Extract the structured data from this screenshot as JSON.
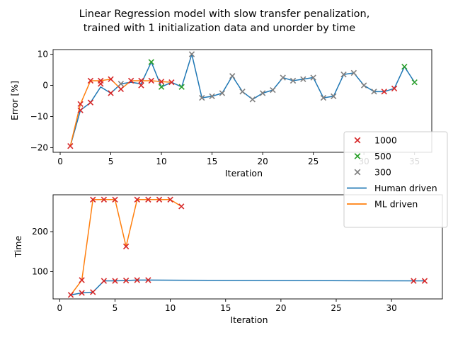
{
  "title_line1": "Linear Regression model with slow transfer  penalization,",
  "title_line2": "trained with 1 initialization data and unorder by time",
  "colors": {
    "human": "#1f77b4",
    "ml": "#ff7f0e",
    "m1000": "#d62728",
    "m500": "#2ca02c",
    "m300": "#7f7f7f"
  },
  "legend": {
    "placement": "right, between the two panels",
    "items": [
      {
        "label": "1000",
        "kind": "marker",
        "color_key": "m1000"
      },
      {
        "label": "500",
        "kind": "marker",
        "color_key": "m500"
      },
      {
        "label": "300",
        "kind": "marker",
        "color_key": "m300"
      },
      {
        "label": "Human driven",
        "kind": "line",
        "color_key": "human"
      },
      {
        "label": "ML driven",
        "kind": "line",
        "color_key": "ml"
      }
    ]
  },
  "chart_data": [
    {
      "type": "line",
      "xlabel": "Iteration",
      "ylabel": "Error [%]",
      "xlim": [
        -0.7,
        36.7
      ],
      "ylim": [
        -21.5,
        11.5
      ],
      "xticks": [
        0,
        5,
        10,
        15,
        20,
        25,
        30,
        35
      ],
      "yticks": [
        -20,
        -10,
        0,
        10
      ],
      "series": [
        {
          "name": "Human driven",
          "color_key": "human",
          "x": [
            1,
            2,
            3,
            4,
            5,
            6,
            7,
            8,
            9,
            10,
            11,
            12,
            13,
            14,
            15,
            16,
            17,
            18,
            19,
            20,
            21,
            22,
            23,
            24,
            25,
            26,
            27,
            28,
            29,
            30,
            31,
            32,
            33,
            34,
            35
          ],
          "y": [
            -19.5,
            -8,
            -5.5,
            -0.5,
            -2.5,
            0.5,
            1,
            0.5,
            7.5,
            -0.5,
            1,
            -0.5,
            10,
            -4,
            -3.5,
            -2.5,
            3,
            -2,
            -4.5,
            -2.5,
            -1.5,
            2.5,
            1.5,
            2,
            2.5,
            -4,
            -3.5,
            3.5,
            4,
            0,
            -2,
            -2,
            -1,
            6,
            1
          ]
        },
        {
          "name": "ML driven",
          "color_key": "ml",
          "x": [
            1,
            2,
            3,
            4,
            5,
            6,
            7,
            8,
            9,
            10,
            11
          ],
          "y": [
            -19.5,
            -6,
            1.5,
            1.5,
            2,
            -1.2,
            1.5,
            1.5,
            1.5,
            1.2,
            1
          ]
        }
      ],
      "markers": [
        {
          "group": "1000",
          "color_key": "m1000",
          "points": [
            [
              1,
              -19.5
            ],
            [
              2,
              -8
            ],
            [
              2,
              -6
            ],
            [
              3,
              -5.5
            ],
            [
              3,
              1.5
            ],
            [
              4,
              1.5
            ],
            [
              4,
              0.5
            ],
            [
              5,
              -2.5
            ],
            [
              5,
              2
            ],
            [
              6,
              -1.2
            ],
            [
              7,
              1.5
            ],
            [
              8,
              1.5
            ],
            [
              8,
              0
            ],
            [
              9,
              1.5
            ],
            [
              10,
              1.2
            ],
            [
              11,
              1
            ],
            [
              32,
              -2
            ],
            [
              33,
              -1
            ]
          ]
        },
        {
          "group": "500",
          "color_key": "m500",
          "points": [
            [
              9,
              7.5
            ],
            [
              10,
              -0.5
            ],
            [
              12,
              -0.5
            ],
            [
              34,
              6
            ],
            [
              35,
              1
            ]
          ]
        },
        {
          "group": "300",
          "color_key": "m300",
          "points": [
            [
              6,
              0.5
            ],
            [
              13,
              10
            ],
            [
              14,
              -4
            ],
            [
              15,
              -3.5
            ],
            [
              16,
              -2.5
            ],
            [
              17,
              3
            ],
            [
              18,
              -2
            ],
            [
              19,
              -4.5
            ],
            [
              20,
              -2.5
            ],
            [
              21,
              -1.5
            ],
            [
              22,
              2.5
            ],
            [
              23,
              1.5
            ],
            [
              24,
              2
            ],
            [
              25,
              2.5
            ],
            [
              26,
              -4
            ],
            [
              27,
              -3.5
            ],
            [
              28,
              3.5
            ],
            [
              29,
              4
            ],
            [
              30,
              0
            ],
            [
              31,
              -2
            ]
          ]
        }
      ]
    },
    {
      "type": "line",
      "xlabel": "Iteration",
      "ylabel": "Time",
      "xlim": [
        -0.6,
        34.6
      ],
      "ylim": [
        32,
        292
      ],
      "xticks": [
        0,
        5,
        10,
        15,
        20,
        25,
        30
      ],
      "yticks": [
        100,
        200
      ],
      "series": [
        {
          "name": "Human driven",
          "color_key": "human",
          "x": [
            1,
            2,
            3,
            4,
            5,
            6,
            7,
            8,
            32,
            33
          ],
          "y": [
            42,
            47,
            49,
            77,
            77,
            78,
            79,
            79,
            77,
            77
          ]
        },
        {
          "name": "ML driven",
          "color_key": "ml",
          "x": [
            1,
            2,
            3,
            4,
            5,
            6,
            7,
            8,
            9,
            10,
            11
          ],
          "y": [
            42,
            79,
            280,
            280,
            280,
            163,
            280,
            280,
            280,
            280,
            263
          ]
        }
      ],
      "markers": [
        {
          "group": "1000",
          "color_key": "m1000",
          "points": [
            [
              1,
              42
            ],
            [
              2,
              47
            ],
            [
              2,
              79
            ],
            [
              3,
              49
            ],
            [
              3,
              280
            ],
            [
              4,
              77
            ],
            [
              4,
              280
            ],
            [
              5,
              77
            ],
            [
              5,
              280
            ],
            [
              6,
              78
            ],
            [
              6,
              163
            ],
            [
              7,
              79
            ],
            [
              7,
              280
            ],
            [
              8,
              79
            ],
            [
              8,
              280
            ],
            [
              9,
              280
            ],
            [
              10,
              280
            ],
            [
              11,
              263
            ],
            [
              32,
              77
            ],
            [
              33,
              77
            ]
          ]
        }
      ]
    }
  ]
}
